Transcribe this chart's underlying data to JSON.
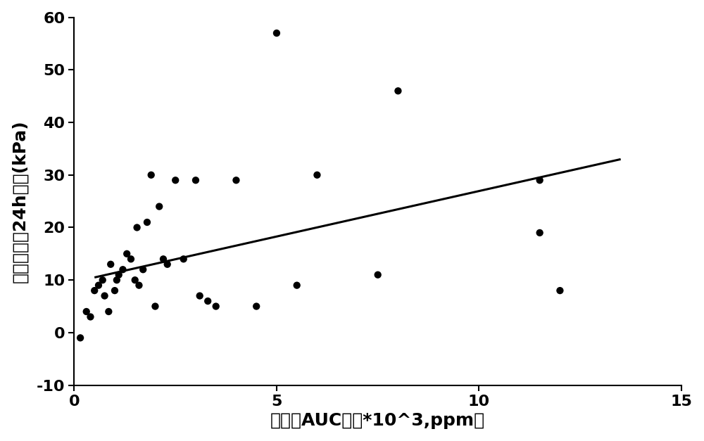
{
  "scatter_x": [
    0.15,
    0.3,
    0.4,
    0.5,
    0.6,
    0.7,
    0.75,
    0.85,
    0.9,
    1.0,
    1.05,
    1.1,
    1.2,
    1.3,
    1.4,
    1.5,
    1.55,
    1.6,
    1.7,
    1.8,
    1.9,
    2.0,
    2.1,
    2.2,
    2.3,
    2.5,
    2.7,
    3.0,
    3.1,
    3.3,
    3.5,
    4.0,
    4.5,
    5.0,
    5.5,
    6.0,
    7.5,
    8.0,
    11.5,
    11.5,
    12.0
  ],
  "scatter_y": [
    -1,
    4,
    3,
    8,
    9,
    10,
    7,
    4,
    13,
    8,
    10,
    11,
    12,
    15,
    14,
    10,
    20,
    9,
    12,
    21,
    30,
    5,
    24,
    14,
    13,
    29,
    14,
    29,
    7,
    6,
    5,
    29,
    5,
    57,
    9,
    30,
    11,
    46,
    19,
    29,
    8
  ],
  "line_x": [
    0.5,
    13.5
  ],
  "line_y": [
    10.5,
    33.0
  ],
  "xlabel": "氢呼气AUC値（*10^3,ppm）",
  "ylabel": "体外发酵第24h压强(kPa)",
  "xlim": [
    0,
    15
  ],
  "ylim": [
    -10,
    60
  ],
  "xticks": [
    0,
    5,
    10,
    15
  ],
  "yticks": [
    -10,
    0,
    10,
    20,
    30,
    40,
    50,
    60
  ],
  "marker_color": "#000000",
  "marker_size": 55,
  "line_color": "#000000",
  "line_width": 2.2,
  "background_color": "#ffffff",
  "xlabel_fontsize": 18,
  "ylabel_fontsize": 18,
  "tick_fontsize": 16
}
